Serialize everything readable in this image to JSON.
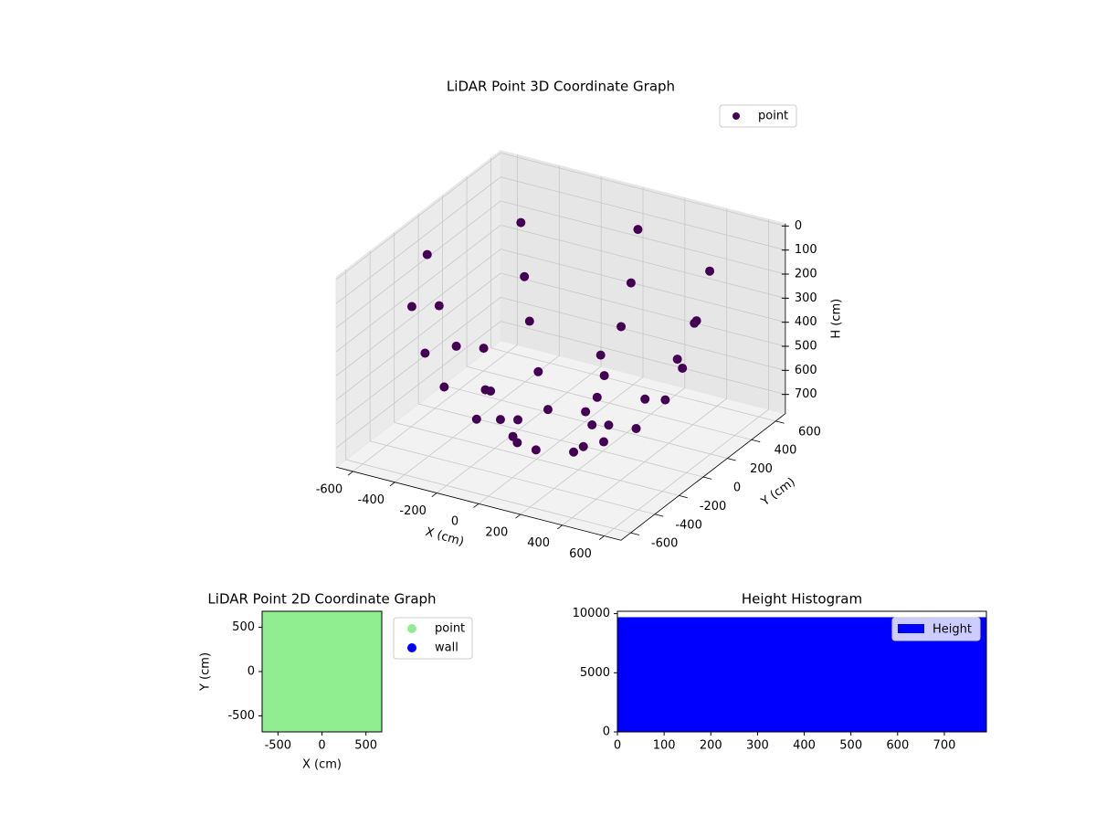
{
  "chart_data": [
    {
      "type": "scatter3d",
      "title": "LiDAR Point 3D Coordinate Graph",
      "xlabel": "X (cm)",
      "ylabel": "Y (cm)",
      "zlabel": "H (cm)",
      "xlim": [
        -680,
        680
      ],
      "ylim": [
        -680,
        680
      ],
      "zlim": [
        780,
        -10
      ],
      "xticks": [
        -600,
        -400,
        -200,
        0,
        200,
        400,
        600
      ],
      "yticks": [
        -600,
        -400,
        -200,
        0,
        200,
        400,
        600
      ],
      "zticks": [
        0,
        100,
        200,
        300,
        400,
        500,
        600,
        700
      ],
      "grid": true,
      "legend": "upper right",
      "series": [
        {
          "name": "point",
          "color": "#440154",
          "x": [
            638,
            451,
            0,
            -451,
            -638,
            -451,
            0,
            451,
            581,
            411,
            0,
            -411,
            -581,
            -411,
            0,
            411,
            499,
            353,
            0,
            -353,
            -499,
            -353,
            0,
            353,
            360,
            255,
            0,
            -255,
            -360,
            -255,
            0,
            255,
            205,
            145,
            0,
            -145,
            -205,
            -145,
            0,
            145
          ],
          "y": [
            0,
            451,
            638,
            451,
            0,
            -451,
            -638,
            -451,
            0,
            411,
            581,
            411,
            0,
            -411,
            -581,
            -411,
            0,
            353,
            499,
            353,
            0,
            -353,
            -499,
            -353,
            0,
            255,
            360,
            255,
            0,
            -255,
            -360,
            -255,
            0,
            145,
            205,
            145,
            0,
            -145,
            -205,
            -145
          ],
          "z": [
            150,
            150,
            150,
            150,
            150,
            150,
            150,
            150,
            350,
            350,
            350,
            350,
            350,
            350,
            350,
            350,
            500,
            500,
            500,
            500,
            500,
            500,
            500,
            500,
            650,
            650,
            650,
            650,
            650,
            650,
            650,
            650,
            740,
            740,
            740,
            740,
            740,
            740,
            740,
            740
          ]
        }
      ]
    },
    {
      "type": "scatter",
      "title": "LiDAR Point 2D Coordinate Graph",
      "xlabel": "X (cm)",
      "ylabel": "Y (cm)",
      "xlim": [
        -680,
        680
      ],
      "ylim": [
        -680,
        680
      ],
      "xticks": [
        -500,
        0,
        500
      ],
      "yticks": [
        -500,
        0,
        500
      ],
      "legend": "outside right",
      "series": [
        {
          "name": "point",
          "color": "#90ee90",
          "x": [
            638,
            451,
            0,
            -451,
            -638,
            -451,
            0,
            451,
            581,
            411,
            0,
            -411,
            -581,
            -411,
            0,
            411,
            499,
            353,
            0,
            -353,
            -499,
            -353,
            0,
            353,
            360,
            255,
            0,
            -255,
            -360,
            -255,
            0,
            255,
            205,
            145,
            0,
            -145,
            -205,
            -145,
            0,
            145
          ],
          "y": [
            0,
            451,
            638,
            451,
            0,
            -451,
            -638,
            -451,
            0,
            411,
            581,
            411,
            0,
            -411,
            -581,
            -411,
            0,
            353,
            499,
            353,
            0,
            -353,
            -499,
            -353,
            0,
            255,
            360,
            255,
            0,
            -255,
            -360,
            -255,
            0,
            145,
            205,
            145,
            0,
            -145,
            -205,
            -145
          ]
        },
        {
          "name": "wall",
          "color": "#0000ff",
          "x": [],
          "y": []
        }
      ]
    },
    {
      "type": "histogram",
      "title": "Height Histogram",
      "bins": [
        0,
        790
      ],
      "counts": [
        9700
      ],
      "name": "Height",
      "color": "#0000ff",
      "xlim": [
        0,
        790
      ],
      "ylim": [
        0,
        10200
      ],
      "xticks": [
        0,
        100,
        200,
        300,
        400,
        500,
        600,
        700
      ],
      "yticks": [
        0,
        5000,
        10000
      ],
      "legend": "upper right"
    }
  ]
}
